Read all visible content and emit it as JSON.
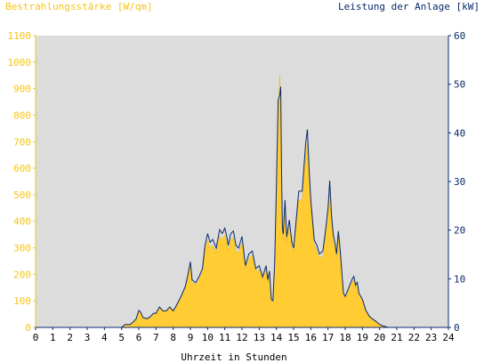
{
  "chart_data": {
    "type": "area",
    "left_axis_title": "Bestrahlungsstärke [W/qm]",
    "right_axis_title": "Leistung der Anlage [kW]",
    "xlabel": "Uhrzeit in Stunden",
    "xlim": [
      0,
      24
    ],
    "ylim_left": [
      0,
      1100
    ],
    "ylim_right": [
      0,
      60
    ],
    "x_ticks": [
      "0",
      "1",
      "2",
      "3",
      "4",
      "5",
      "6",
      "7",
      "8",
      "9",
      "10",
      "11",
      "12",
      "13",
      "14",
      "15",
      "16",
      "17",
      "18",
      "19",
      "20",
      "21",
      "22",
      "23",
      "24"
    ],
    "y_ticks_left": [
      "0",
      "100",
      "200",
      "300",
      "400",
      "500",
      "600",
      "700",
      "800",
      "900",
      "1000",
      "1100"
    ],
    "y_ticks_right": [
      "0",
      "10",
      "20",
      "30",
      "40",
      "50",
      "60"
    ],
    "grid": false,
    "colors": {
      "irradiance": "#ffcc33",
      "power": "#0a2a6e",
      "plot_bg": "#dcdcdc",
      "left_axis": "#f5c518",
      "right_axis": "#0a2a6e"
    },
    "series": [
      {
        "name": "Bestrahlungsstärke [W/qm]",
        "axis": "left",
        "x": [
          0,
          5,
          5.2,
          5.5,
          5.7,
          5.85,
          6,
          6.1,
          6.25,
          6.5,
          6.7,
          6.85,
          7,
          7.2,
          7.4,
          7.6,
          7.8,
          8,
          8.2,
          8.5,
          8.7,
          8.85,
          9,
          9.1,
          9.3,
          9.5,
          9.7,
          9.85,
          10,
          10.15,
          10.3,
          10.5,
          10.7,
          10.85,
          11,
          11.1,
          11.2,
          11.35,
          11.5,
          11.65,
          11.8,
          12,
          12.2,
          12.4,
          12.6,
          12.8,
          13,
          13.2,
          13.4,
          13.5,
          13.6,
          13.7,
          13.8,
          13.9,
          14,
          14.1,
          14.2,
          14.25,
          14.3,
          14.35,
          14.4,
          14.5,
          14.6,
          14.75,
          14.9,
          15,
          15.15,
          15.3,
          15.5,
          15.7,
          15.8,
          15.9,
          16,
          16.1,
          16.2,
          16.35,
          16.5,
          16.7,
          16.85,
          17,
          17.1,
          17.2,
          17.3,
          17.4,
          17.5,
          17.6,
          17.7,
          17.8,
          17.9,
          18,
          18.2,
          18.4,
          18.5,
          18.6,
          18.7,
          18.8,
          19,
          19.2,
          19.4,
          19.6,
          19.8,
          20,
          20.2,
          20.5,
          20.8,
          21,
          24
        ],
        "y": [
          0,
          0,
          10,
          10,
          20,
          30,
          60,
          55,
          35,
          30,
          40,
          50,
          50,
          75,
          60,
          60,
          75,
          60,
          80,
          120,
          150,
          190,
          235,
          170,
          160,
          180,
          210,
          290,
          330,
          300,
          310,
          280,
          345,
          330,
          350,
          325,
          290,
          330,
          340,
          290,
          280,
          320,
          220,
          260,
          270,
          210,
          220,
          180,
          220,
          170,
          200,
          100,
          95,
          230,
          500,
          800,
          950,
          850,
          550,
          350,
          330,
          450,
          320,
          380,
          300,
          280,
          380,
          480,
          480,
          650,
          700,
          560,
          450,
          380,
          310,
          290,
          260,
          270,
          340,
          420,
          520,
          400,
          330,
          300,
          260,
          340,
          280,
          200,
          120,
          110,
          140,
          170,
          180,
          150,
          160,
          120,
          100,
          60,
          40,
          30,
          20,
          10,
          5,
          0,
          0,
          0,
          0
        ]
      },
      {
        "name": "Leistung der Anlage [kW]",
        "axis": "right",
        "x": [
          0,
          5,
          5.2,
          5.5,
          5.7,
          5.85,
          6,
          6.1,
          6.25,
          6.5,
          6.7,
          6.85,
          7,
          7.2,
          7.4,
          7.6,
          7.8,
          8,
          8.2,
          8.5,
          8.7,
          8.85,
          9,
          9.1,
          9.3,
          9.5,
          9.7,
          9.85,
          10,
          10.15,
          10.3,
          10.5,
          10.7,
          10.85,
          11,
          11.1,
          11.2,
          11.35,
          11.5,
          11.65,
          11.8,
          12,
          12.2,
          12.4,
          12.6,
          12.8,
          13,
          13.2,
          13.4,
          13.5,
          13.6,
          13.7,
          13.8,
          13.9,
          14,
          14.1,
          14.2,
          14.25,
          14.3,
          14.35,
          14.4,
          14.5,
          14.6,
          14.75,
          14.9,
          15,
          15.15,
          15.3,
          15.5,
          15.7,
          15.8,
          15.9,
          16,
          16.1,
          16.2,
          16.35,
          16.5,
          16.7,
          16.85,
          17,
          17.1,
          17.2,
          17.3,
          17.4,
          17.5,
          17.6,
          17.7,
          17.8,
          17.9,
          18,
          18.2,
          18.4,
          18.5,
          18.6,
          18.7,
          18.8,
          19,
          19.2,
          19.4,
          19.6,
          19.8,
          20,
          20.2,
          20.5,
          20.8,
          21,
          24
        ],
        "y": [
          0,
          0,
          0.6,
          0.6,
          1.2,
          1.8,
          3.5,
          3.2,
          2,
          1.8,
          2.3,
          2.9,
          2.9,
          4.2,
          3.4,
          3.4,
          4.2,
          3.4,
          4.6,
          6.7,
          8.4,
          10.7,
          13.5,
          9.8,
          9.2,
          10.4,
          12.1,
          16.9,
          19.3,
          17.5,
          18.1,
          16.3,
          20.1,
          19.3,
          20.4,
          19,
          16.9,
          19.3,
          19.8,
          16.9,
          16.3,
          18.7,
          12.7,
          15.1,
          15.7,
          12.1,
          12.7,
          10.4,
          12.7,
          9.8,
          11.6,
          5.8,
          5.5,
          13.4,
          29.1,
          46.6,
          48,
          49.5,
          32,
          20.4,
          19.2,
          26.2,
          18.6,
          22.1,
          17.5,
          16.3,
          22.1,
          28,
          28,
          37.8,
          40.7,
          32.6,
          26.2,
          22.1,
          18,
          16.9,
          15.1,
          15.7,
          19.8,
          24.4,
          30.2,
          23.3,
          19.2,
          17.5,
          15.1,
          19.8,
          16.3,
          11.6,
          7,
          6.4,
          8.1,
          9.9,
          10.5,
          8.7,
          9.3,
          7,
          5.8,
          3.5,
          2.3,
          1.7,
          1.2,
          0.6,
          0.3,
          0,
          0,
          0,
          0
        ]
      }
    ]
  }
}
